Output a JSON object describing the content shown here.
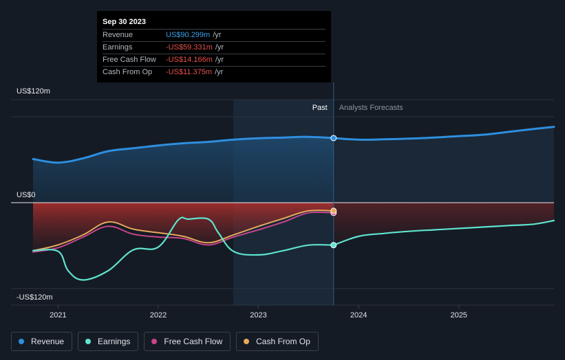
{
  "tooltip": {
    "date": "Sep 30 2023",
    "rows": [
      {
        "label": "Revenue",
        "value": "US$90.299m",
        "unit": "/yr",
        "color": "#3a9fe8"
      },
      {
        "label": "Earnings",
        "value": "-US$59.331m",
        "unit": "/yr",
        "color": "#e8514c"
      },
      {
        "label": "Free Cash Flow",
        "value": "-US$14.166m",
        "unit": "/yr",
        "color": "#e8514c"
      },
      {
        "label": "Cash From Op",
        "value": "-US$11.375m",
        "unit": "/yr",
        "color": "#e8514c"
      }
    ]
  },
  "legend": [
    {
      "label": "Revenue",
      "color": "#2e8fe0"
    },
    {
      "label": "Earnings",
      "color": "#5fe3cf"
    },
    {
      "label": "Free Cash Flow",
      "color": "#c9458c"
    },
    {
      "label": "Cash From Op",
      "color": "#e9a85b"
    }
  ],
  "chart_data": {
    "type": "line",
    "y_ticks": [
      {
        "value": 120,
        "label": "US$120m"
      },
      {
        "value": 0,
        "label": "US$0"
      },
      {
        "value": -120,
        "label": "-US$120m"
      }
    ],
    "ylim": [
      -120,
      120
    ],
    "xlim": [
      2020.75,
      2025.95
    ],
    "x_ticks": [
      {
        "value": 2021,
        "label": "2021"
      },
      {
        "value": 2022,
        "label": "2022"
      },
      {
        "value": 2023,
        "label": "2023"
      },
      {
        "value": 2024,
        "label": "2024"
      },
      {
        "value": 2025,
        "label": "2025"
      }
    ],
    "past_label": "Past",
    "forecast_label": "Analysts Forecasts",
    "highlight_start": 2022.75,
    "divider_x": 2023.75,
    "series": [
      {
        "name": "Revenue",
        "color": "#2e8fe0",
        "x": [
          2020.75,
          2021.0,
          2021.25,
          2021.5,
          2021.75,
          2022.0,
          2022.25,
          2022.5,
          2022.75,
          2023.0,
          2023.25,
          2023.5,
          2023.75
        ],
        "y": [
          61,
          56,
          62,
          72,
          76,
          80,
          83,
          85,
          88,
          90,
          91,
          92,
          90.3
        ]
      },
      {
        "name": "Revenue forecast",
        "color": "#2e8fe0",
        "x": [
          2023.75,
          2024.0,
          2024.25,
          2024.5,
          2024.75,
          2025.0,
          2025.25,
          2025.5,
          2025.75,
          2025.95
        ],
        "y": [
          90.3,
          88,
          88.5,
          89.5,
          91,
          93,
          95,
          99,
          103,
          106
        ]
      },
      {
        "name": "Earnings",
        "color": "#5fe3cf",
        "x": [
          2020.75,
          2021.0,
          2021.1,
          2021.25,
          2021.5,
          2021.75,
          2022.0,
          2022.2,
          2022.3,
          2022.5,
          2022.6,
          2022.75,
          2023.0,
          2023.25,
          2023.5,
          2023.75
        ],
        "y": [
          -67,
          -68,
          -95,
          -108,
          -95,
          -66,
          -62,
          -24,
          -23,
          -23,
          -42,
          -68,
          -73,
          -67,
          -59.3,
          -59.3
        ]
      },
      {
        "name": "Earnings forecast",
        "color": "#5fe3cf",
        "x": [
          2023.75,
          2024.0,
          2024.25,
          2024.5,
          2024.75,
          2025.0,
          2025.25,
          2025.5,
          2025.75,
          2025.95
        ],
        "y": [
          -59.3,
          -47,
          -43,
          -40,
          -38,
          -36,
          -34,
          -32,
          -30,
          -25
        ]
      },
      {
        "name": "Free Cash Flow",
        "color": "#c9458c",
        "x": [
          2020.75,
          2021.0,
          2021.25,
          2021.5,
          2021.75,
          2022.0,
          2022.25,
          2022.5,
          2022.75,
          2023.0,
          2023.25,
          2023.5,
          2023.75
        ],
        "y": [
          -69,
          -63,
          -48,
          -33,
          -44,
          -48,
          -50,
          -59,
          -48,
          -38,
          -27,
          -14.2,
          -14.2
        ]
      },
      {
        "name": "Cash From Op",
        "color": "#e9a85b",
        "x": [
          2020.75,
          2021.0,
          2021.25,
          2021.5,
          2021.75,
          2022.0,
          2022.25,
          2022.5,
          2022.75,
          2023.0,
          2023.25,
          2023.5,
          2023.75
        ],
        "y": [
          -67,
          -59,
          -45,
          -27,
          -37,
          -42,
          -47,
          -56,
          -45,
          -33,
          -22,
          -11.4,
          -11.4
        ]
      }
    ]
  }
}
